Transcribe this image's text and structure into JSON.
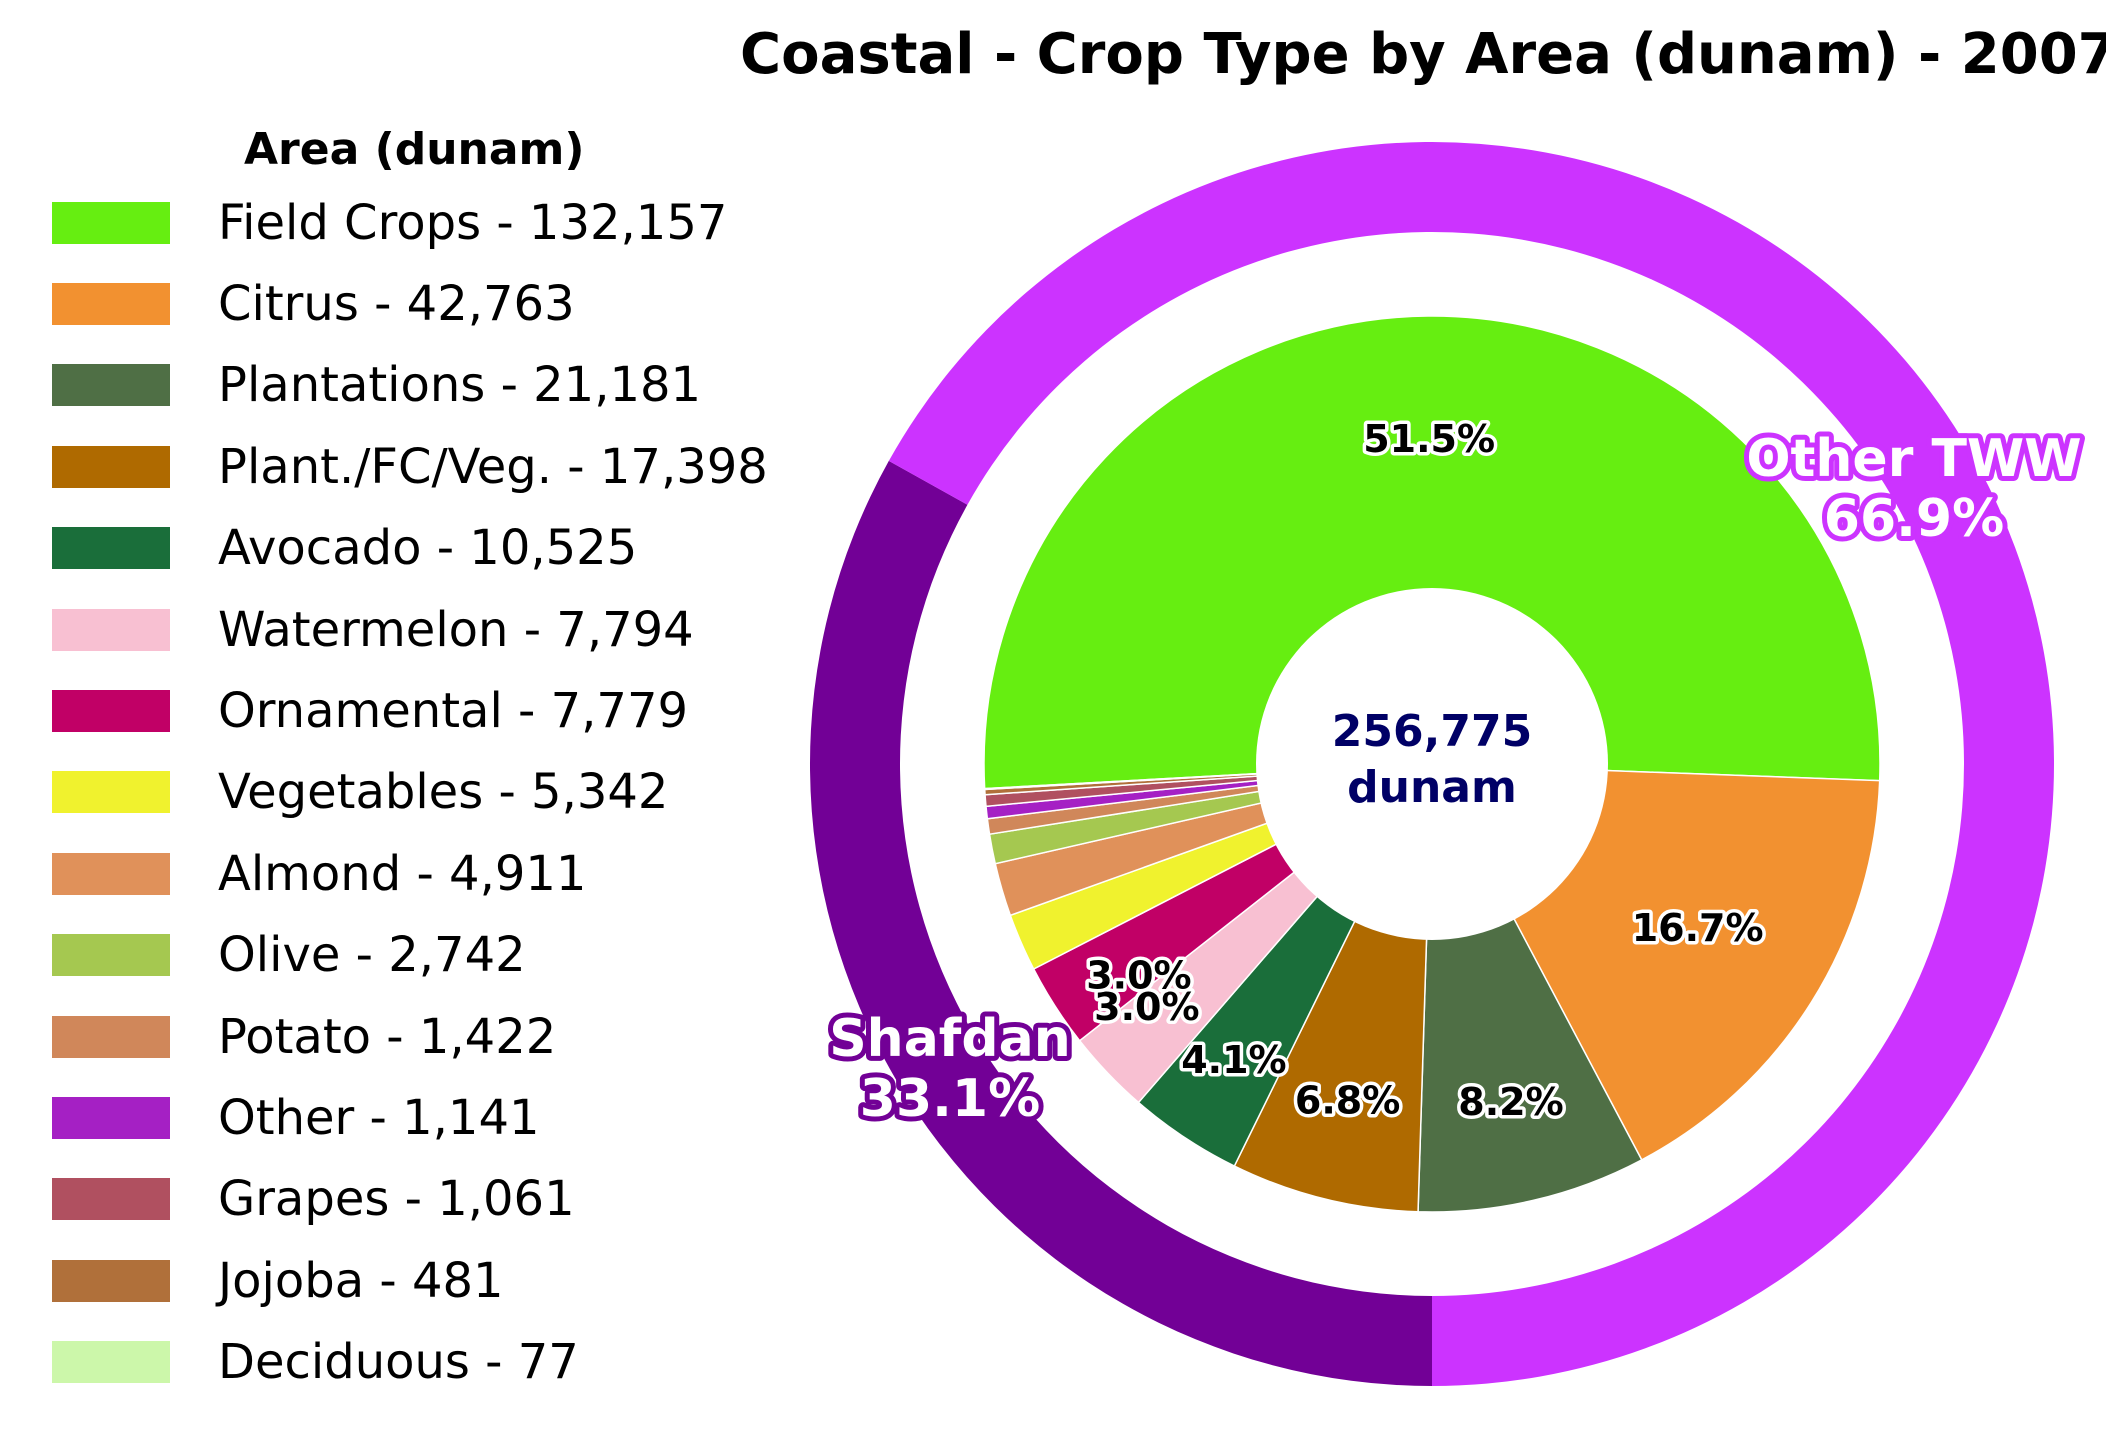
{
  "chart_data": {
    "type": "pie",
    "title": "Coastal - Crop Type by Area (dunam) - 2007",
    "legend_title": "Area (dunam)",
    "legend_position": "left",
    "center_value": "256,775",
    "center_unit": "dunam",
    "inner_ring": [
      {
        "name": "Field Crops",
        "value": 132157,
        "label": "Field Crops - 132,157",
        "pct_label": "51.5%",
        "color": "#66ee11"
      },
      {
        "name": "Citrus",
        "value": 42763,
        "label": "Citrus - 42,763",
        "pct_label": "16.7%",
        "color": "#f29130"
      },
      {
        "name": "Plantations",
        "value": 21181,
        "label": "Plantations - 21,181",
        "pct_label": "8.2%",
        "color": "#4f6f45"
      },
      {
        "name": "Plant./FC/Veg.",
        "value": 17398,
        "label": "Plant./FC/Veg. - 17,398",
        "pct_label": "6.8%",
        "color": "#af6a00"
      },
      {
        "name": "Avocado",
        "value": 10525,
        "label": "Avocado - 10,525",
        "pct_label": "4.1%",
        "color": "#1a6e3a"
      },
      {
        "name": "Watermelon",
        "value": 7794,
        "label": "Watermelon - 7,794",
        "pct_label": "3.0%",
        "color": "#f8c0d2"
      },
      {
        "name": "Ornamental",
        "value": 7779,
        "label": "Ornamental - 7,779",
        "pct_label": "3.0%",
        "color": "#c10066"
      },
      {
        "name": "Vegetables",
        "value": 5342,
        "label": "Vegetables - 5,342",
        "pct_label": "",
        "color": "#f0f22e"
      },
      {
        "name": "Almond",
        "value": 4911,
        "label": "Almond - 4,911",
        "pct_label": "",
        "color": "#e0915a"
      },
      {
        "name": "Olive",
        "value": 2742,
        "label": "Olive - 2,742",
        "pct_label": "",
        "color": "#a5c850"
      },
      {
        "name": "Potato",
        "value": 1422,
        "label": "Potato - 1,422",
        "pct_label": "",
        "color": "#d0875a"
      },
      {
        "name": "Other",
        "value": 1141,
        "label": "Other - 1,141",
        "pct_label": "",
        "color": "#a520c4"
      },
      {
        "name": "Grapes",
        "value": 1061,
        "label": "Grapes - 1,061",
        "pct_label": "",
        "color": "#b05060"
      },
      {
        "name": "Jojoba",
        "value": 481,
        "label": "Jojoba - 481",
        "pct_label": "",
        "color": "#b0703a"
      },
      {
        "name": "Deciduous",
        "value": 77,
        "label": "Deciduous - 77",
        "pct_label": "",
        "color": "#ccf7aa"
      }
    ],
    "outer_ring": [
      {
        "name": "Other TWW",
        "percent": 66.9,
        "pct_label": "66.9%",
        "color": "#cc33ff"
      },
      {
        "name": "Shafdan",
        "percent": 33.1,
        "pct_label": "33.1%",
        "color": "#720096"
      }
    ]
  }
}
